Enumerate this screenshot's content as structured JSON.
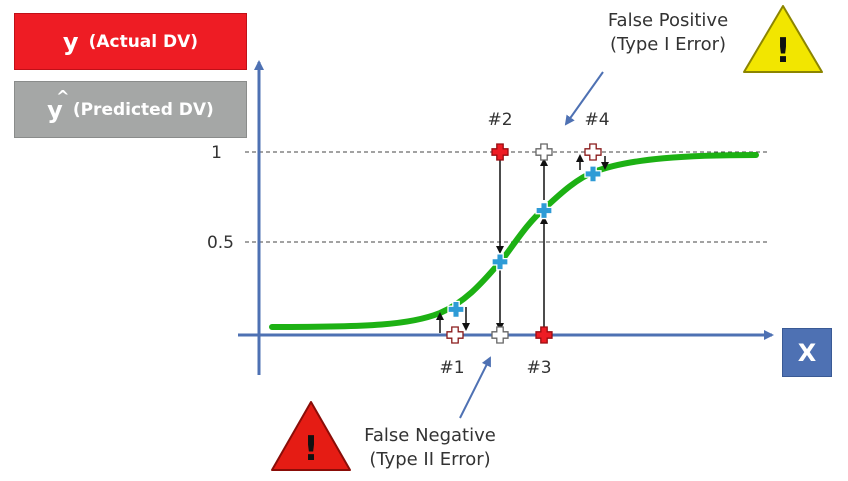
{
  "legend": {
    "actual_symbol": "y",
    "actual_label": "(Actual DV)",
    "pred_symbol": "y",
    "pred_hat": "^",
    "pred_label": "(Predicted DV)"
  },
  "axes": {
    "x_label": "X",
    "y_tick_1": "1",
    "y_tick_05": "0.5"
  },
  "points": [
    {
      "label": "#1",
      "x": 1,
      "y_actual": 0,
      "y_predicted": 0.14
    },
    {
      "label": "#2",
      "x": 2,
      "y_actual": 1,
      "y_predicted": 0.4
    },
    {
      "label": "#3",
      "x": 3,
      "y_actual": 0,
      "y_predicted": 0.68
    },
    {
      "label": "#4",
      "x": 4,
      "y_actual": 1,
      "y_predicted": 0.88
    }
  ],
  "annotations": {
    "false_positive": [
      "False Positive",
      "(Type I Error)"
    ],
    "false_negative": [
      "False Negative",
      "(Type II Error)"
    ],
    "warning_icon": "warning-triangle-icon",
    "warning_glyph": "!"
  },
  "colors": {
    "actual": "#ee1c24",
    "predicted_box": "#a5a7a6",
    "curve": "#1db114",
    "axis": "#4e71b3",
    "prediction_marker": "#2e9bd6",
    "warning_yellow": "#f2e600",
    "warning_red": "#e51c14"
  }
}
